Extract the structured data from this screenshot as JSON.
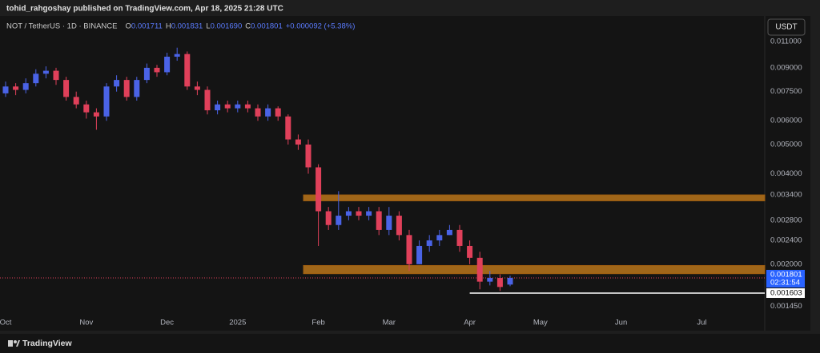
{
  "header": {
    "publisher": "tohid_rahgoshay published on TradingView.com, Apr 18, 2025 21:28 UTC"
  },
  "footer": {
    "brand": "TradingView"
  },
  "chart_data": {
    "type": "candlestick",
    "symbol": "NOT / TetherUS · 1D · BINANCE",
    "ohlc_labels": [
      "O",
      "H",
      "L",
      "C"
    ],
    "ohlc_values": [
      "0.001711",
      "0.001831",
      "0.001690",
      "0.001801"
    ],
    "change": "+0.000092 (+5.38%)",
    "currency": "USDT",
    "categories": [
      "Oct",
      null,
      null,
      null,
      null,
      null,
      null,
      null,
      "Nov",
      null,
      null,
      null,
      null,
      null,
      null,
      null,
      "Dec",
      null,
      null,
      null,
      null,
      null,
      null,
      "2025",
      null,
      null,
      null,
      null,
      null,
      null,
      null,
      "Feb",
      null,
      null,
      null,
      null,
      null,
      null,
      "Mar",
      null,
      null,
      null,
      null,
      null,
      null,
      null,
      "Apr",
      null,
      null,
      null,
      null,
      null,
      null,
      "May",
      null,
      null,
      null,
      null,
      null,
      null,
      null,
      "Jun",
      null,
      null,
      null,
      null,
      null,
      null,
      null,
      "Jul",
      null,
      null,
      null,
      null,
      null
    ],
    "series": [
      {
        "open": [
          0.0074,
          0.0078,
          0.0076,
          0.008,
          0.0086,
          0.0088,
          0.0082,
          0.0072,
          0.0068,
          0.0064,
          0.0062,
          0.0078,
          0.0082,
          0.0072,
          0.0082,
          0.009,
          0.0087,
          0.0098,
          0.01,
          0.0078,
          0.0076,
          0.0065,
          0.0068,
          0.0066,
          0.0068,
          0.0066,
          0.0062,
          0.0066,
          0.0062,
          0.0052,
          0.005,
          0.0042,
          0.003,
          0.0027,
          0.0029,
          0.003,
          0.0029,
          0.003,
          0.0026,
          0.0029,
          0.0025,
          0.002,
          0.0023,
          0.0024,
          0.0025,
          0.0026,
          0.0023,
          0.0021,
          0.00175,
          0.0018,
          0.001711,
          null,
          null,
          null,
          null,
          null,
          null,
          null,
          null,
          null,
          null,
          null,
          null,
          null,
          null,
          null,
          null,
          null,
          null,
          null,
          null,
          null,
          null,
          null,
          null
        ],
        "high": [
          0.0081,
          0.008,
          0.0083,
          0.0089,
          0.0091,
          0.009,
          0.0084,
          0.0075,
          0.007,
          0.0066,
          0.008,
          0.0085,
          0.0084,
          0.0084,
          0.0093,
          0.0092,
          0.0101,
          0.0105,
          0.0102,
          0.0081,
          0.0078,
          0.007,
          0.007,
          0.007,
          0.007,
          0.0068,
          0.0068,
          0.0067,
          0.0063,
          0.0054,
          0.0052,
          0.0043,
          0.0031,
          0.0035,
          0.0031,
          0.0031,
          0.0031,
          0.0031,
          0.0031,
          0.003,
          0.0026,
          0.0024,
          0.0025,
          0.0026,
          0.0027,
          0.0027,
          0.0024,
          0.0022,
          0.0019,
          0.00185,
          0.001831,
          null,
          null,
          null,
          null,
          null,
          null,
          null,
          null,
          null,
          null,
          null,
          null,
          null,
          null,
          null,
          null,
          null,
          null,
          null,
          null,
          null,
          null,
          null,
          null
        ],
        "low": [
          0.0072,
          0.0073,
          0.0074,
          0.0078,
          0.0083,
          0.0079,
          0.007,
          0.0066,
          0.0061,
          0.0056,
          0.006,
          0.0075,
          0.007,
          0.007,
          0.008,
          0.0084,
          0.0085,
          0.0095,
          0.0076,
          0.0073,
          0.0063,
          0.0063,
          0.0064,
          0.0064,
          0.0064,
          0.006,
          0.006,
          0.006,
          0.005,
          0.0048,
          0.004,
          0.0023,
          0.0026,
          0.0026,
          0.0028,
          0.0028,
          0.0028,
          0.0025,
          0.0025,
          0.0024,
          0.0019,
          0.002,
          0.0022,
          0.0023,
          0.0025,
          0.0022,
          0.002,
          0.00165,
          0.0017,
          0.00163,
          0.00169,
          null,
          null,
          null,
          null,
          null,
          null,
          null,
          null,
          null,
          null,
          null,
          null,
          null,
          null,
          null,
          null,
          null,
          null,
          null,
          null,
          null,
          null,
          null,
          null
        ],
        "close": [
          0.0078,
          0.0076,
          0.008,
          0.0086,
          0.0088,
          0.0082,
          0.0072,
          0.0068,
          0.0064,
          0.0062,
          0.0078,
          0.0082,
          0.0072,
          0.0082,
          0.009,
          0.0087,
          0.0098,
          0.01,
          0.0078,
          0.0076,
          0.0065,
          0.0068,
          0.0066,
          0.0068,
          0.0066,
          0.0062,
          0.0066,
          0.0062,
          0.0052,
          0.005,
          0.0042,
          0.003,
          0.0027,
          0.0029,
          0.003,
          0.0029,
          0.003,
          0.0026,
          0.0029,
          0.0025,
          0.002,
          0.0023,
          0.0024,
          0.0025,
          0.0026,
          0.0023,
          0.0021,
          0.00175,
          0.0018,
          0.00168,
          0.001801,
          null,
          null,
          null,
          null,
          null,
          null,
          null,
          null,
          null,
          null,
          null,
          null,
          null,
          null,
          null,
          null,
          null,
          null,
          null,
          null,
          null,
          null,
          null,
          null
        ]
      }
    ],
    "up_color": "#4a63e6",
    "down_color": "#e0405a",
    "log_scale": true,
    "grid": false,
    "ylim": [
      0.00131,
      0.0117
    ],
    "yticks": [
      {
        "value": 0.011,
        "label": "0.011000"
      },
      {
        "value": 0.009,
        "label": "0.009000"
      },
      {
        "value": 0.0075,
        "label": "0.007500"
      },
      {
        "value": 0.006,
        "label": "0.006000"
      },
      {
        "value": 0.005,
        "label": "0.005000"
      },
      {
        "value": 0.004,
        "label": "0.004000"
      },
      {
        "value": 0.0034,
        "label": "0.003400"
      },
      {
        "value": 0.0028,
        "label": "0.002800"
      },
      {
        "value": 0.0024,
        "label": "0.002400"
      },
      {
        "value": 0.002,
        "label": "0.002000"
      },
      {
        "value": 0.00145,
        "label": "0.001450"
      }
    ],
    "zones": [
      {
        "low": 0.00325,
        "high": 0.0034,
        "start": 30,
        "color": "#b8741a"
      },
      {
        "low": 0.00186,
        "high": 0.00198,
        "start": 30,
        "color": "#b8741a"
      }
    ],
    "support": {
      "value": 0.001603,
      "start": 46
    },
    "last_price": 0.001801,
    "countdown": "02:31:54"
  }
}
